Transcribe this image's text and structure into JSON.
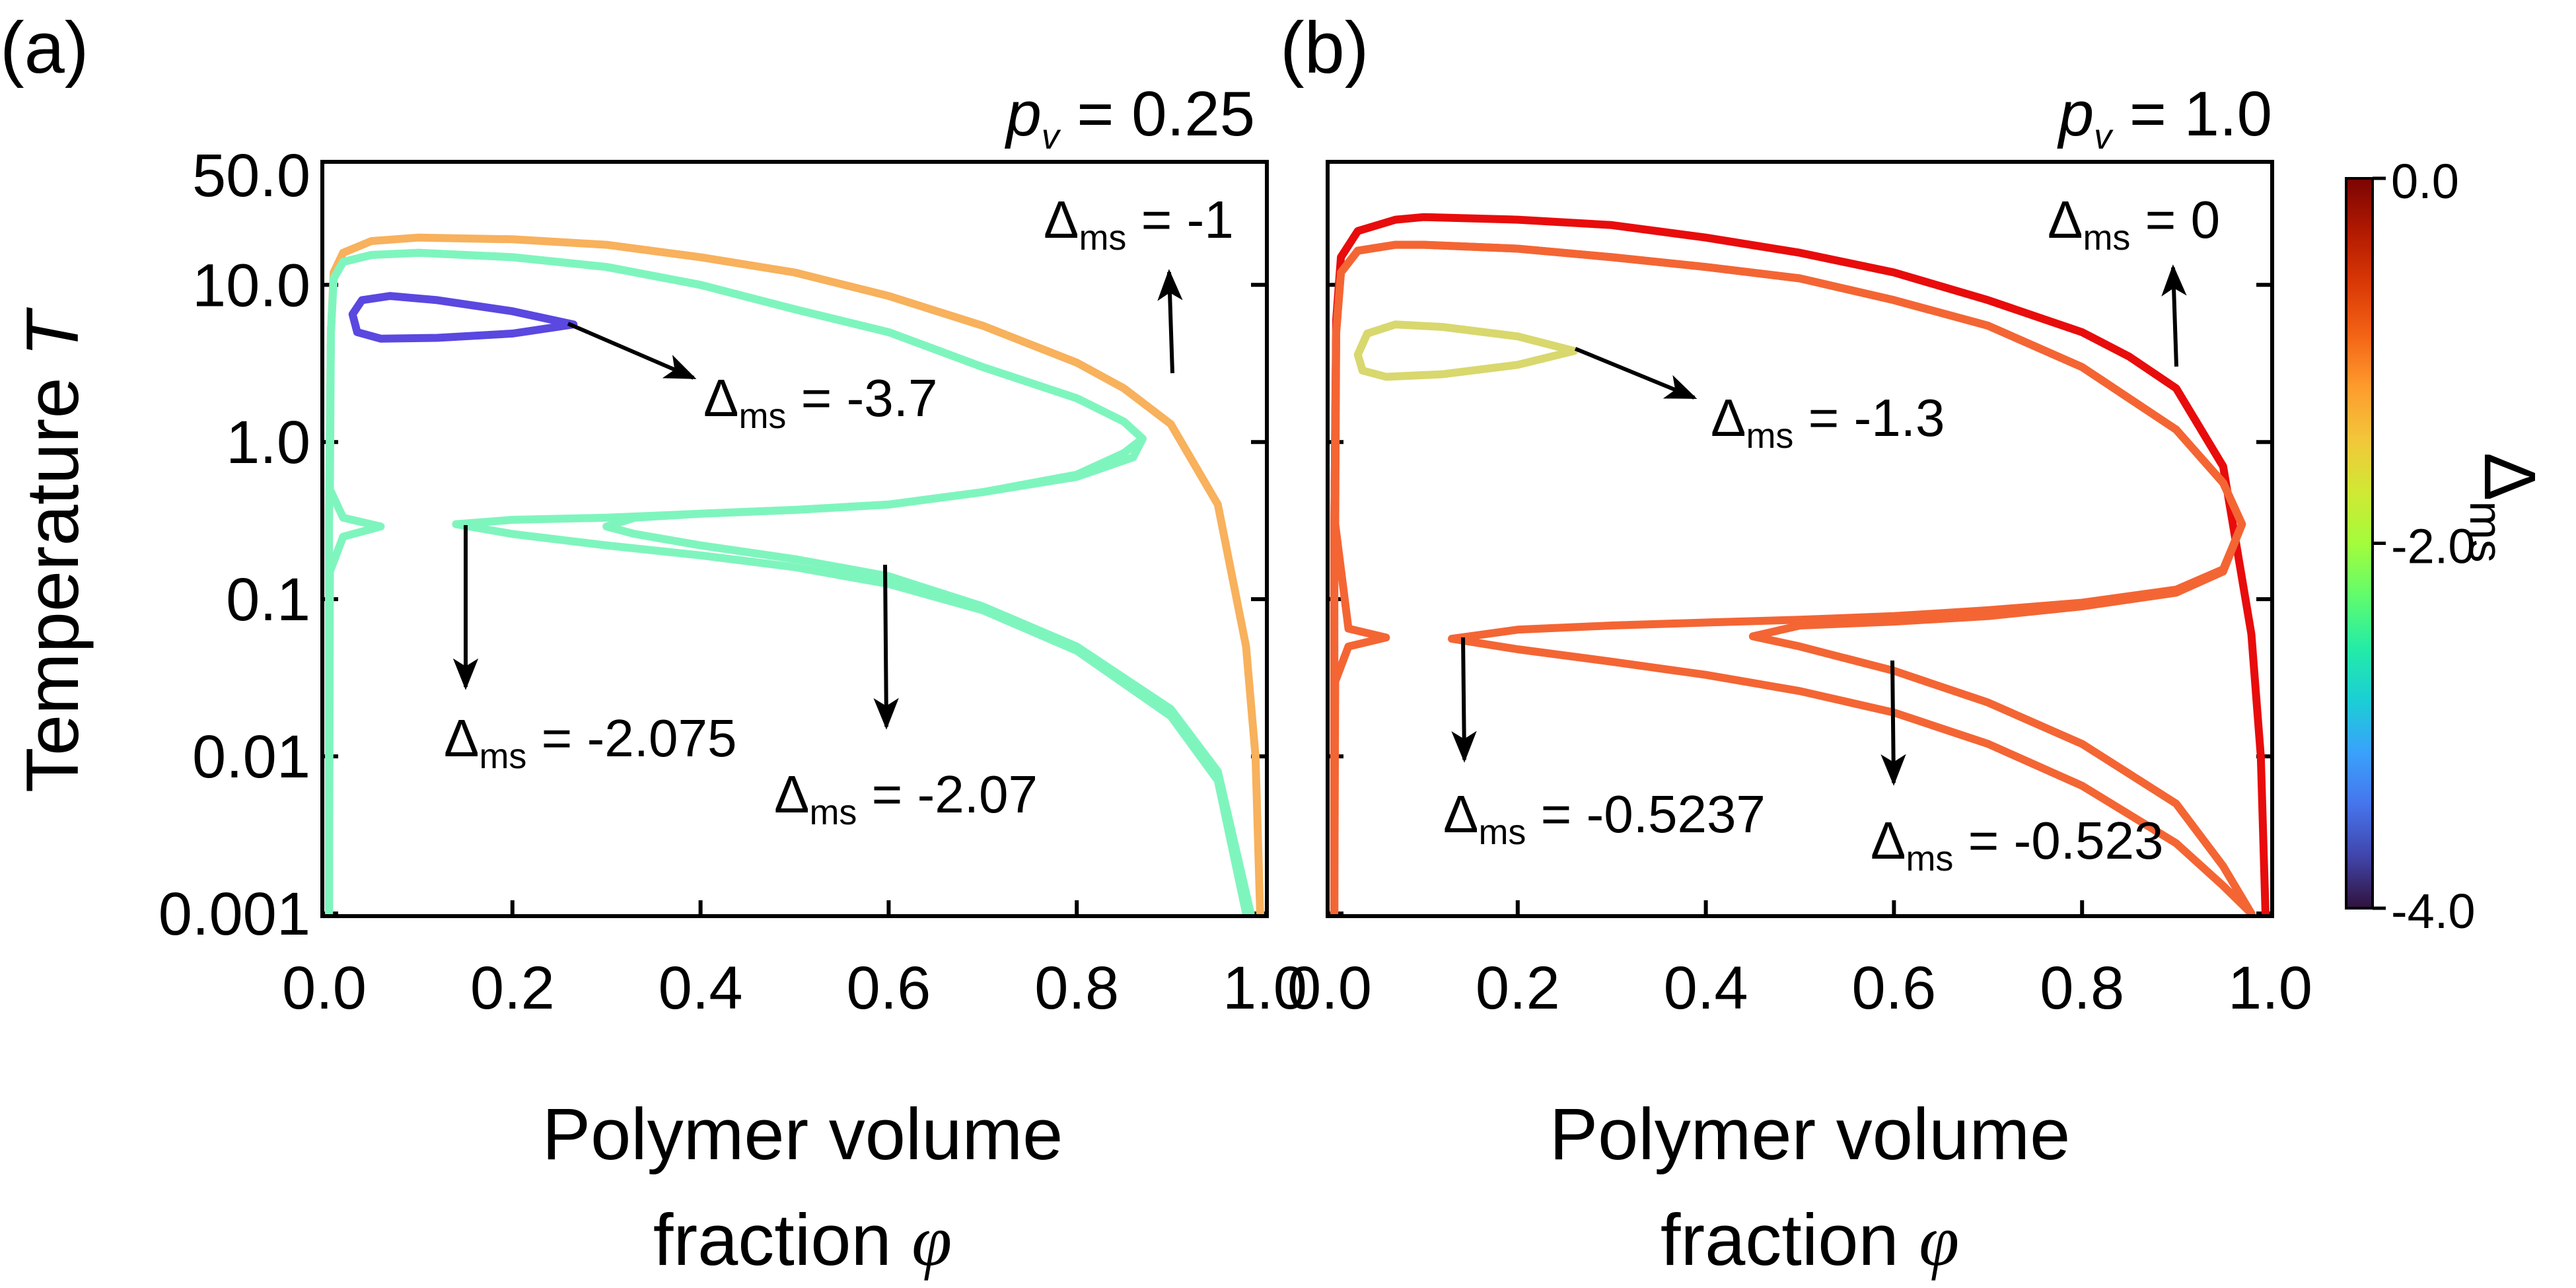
{
  "chart_data": [
    {
      "panel_label": "(a)",
      "type": "line",
      "title": "p_v = 0.25",
      "title_parts": {
        "symbol": "p",
        "subscript": "v",
        "rest": " = 0.25"
      },
      "ylabel": {
        "text": "Temperature ",
        "symbol": "T"
      },
      "xlabel": {
        "line1": "Polymer volume",
        "line2": "fraction ",
        "symbol": "φ"
      },
      "xlim": [
        0.0,
        1.0
      ],
      "ylim": [
        0.001,
        50.0
      ],
      "yscale": "log",
      "xticks": [
        0.0,
        0.2,
        0.4,
        0.6,
        0.8,
        1.0
      ],
      "xtick_labels": [
        "0.0",
        "0.2",
        "0.4",
        "0.6",
        "0.8",
        "1.0"
      ],
      "yticks": [
        0.001,
        0.01,
        0.1,
        1.0,
        10.0,
        50.0
      ],
      "ytick_labels": [
        "0.001",
        "0.01",
        "0.1",
        "1.0",
        "10.0",
        "50.0"
      ],
      "series": [
        {
          "name": "Δms = -1",
          "delta_ms": -1.0,
          "color": "#F8B15C",
          "points": [
            [
              0.005,
              0.001
            ],
            [
              0.005,
              0.3
            ],
            [
              0.007,
              5
            ],
            [
              0.01,
              12
            ],
            [
              0.02,
              16
            ],
            [
              0.05,
              19
            ],
            [
              0.1,
              20
            ],
            [
              0.2,
              19.5
            ],
            [
              0.3,
              18
            ],
            [
              0.4,
              15
            ],
            [
              0.5,
              12
            ],
            [
              0.6,
              8.5
            ],
            [
              0.7,
              5.5
            ],
            [
              0.8,
              3.2
            ],
            [
              0.85,
              2.2
            ],
            [
              0.9,
              1.3
            ],
            [
              0.95,
              0.4
            ],
            [
              0.98,
              0.05
            ],
            [
              0.99,
              0.01
            ],
            [
              0.995,
              0.001
            ]
          ]
        },
        {
          "name": "Δms = -2.07",
          "delta_ms": -2.07,
          "color": "#7FF5BE",
          "points": [
            [
              0.005,
              0.001
            ],
            [
              0.005,
              0.3
            ],
            [
              0.007,
              5
            ],
            [
              0.01,
              11
            ],
            [
              0.02,
              14
            ],
            [
              0.05,
              15.5
            ],
            [
              0.1,
              16
            ],
            [
              0.2,
              15
            ],
            [
              0.3,
              13
            ],
            [
              0.4,
              10
            ],
            [
              0.5,
              7
            ],
            [
              0.6,
              5
            ],
            [
              0.7,
              3
            ],
            [
              0.8,
              1.9
            ],
            [
              0.85,
              1.35
            ],
            [
              0.87,
              1.05
            ],
            [
              0.86,
              0.8
            ],
            [
              0.8,
              0.6
            ],
            [
              0.7,
              0.48
            ],
            [
              0.6,
              0.4
            ],
            [
              0.5,
              0.37
            ],
            [
              0.4,
              0.35
            ],
            [
              0.33,
              0.33
            ],
            [
              0.3,
              0.29
            ],
            [
              0.33,
              0.26
            ],
            [
              0.4,
              0.22
            ],
            [
              0.5,
              0.18
            ],
            [
              0.6,
              0.14
            ],
            [
              0.7,
              0.09
            ],
            [
              0.8,
              0.05
            ],
            [
              0.9,
              0.02
            ],
            [
              0.95,
              0.008
            ],
            [
              0.985,
              0.001
            ]
          ]
        },
        {
          "name": "Δms = -2.075",
          "delta_ms": -2.075,
          "color": "#7FF5BE",
          "points": [
            [
              0.14,
              0.3
            ],
            [
              0.2,
              0.32
            ],
            [
              0.3,
              0.33
            ],
            [
              0.4,
              0.35
            ],
            [
              0.5,
              0.37
            ],
            [
              0.6,
              0.4
            ],
            [
              0.7,
              0.48
            ],
            [
              0.8,
              0.62
            ],
            [
              0.85,
              0.85
            ],
            [
              0.87,
              1.05
            ],
            [
              0.85,
              1.35
            ],
            [
              0.8,
              1.9
            ],
            [
              0.7,
              3
            ],
            [
              0.6,
              5
            ],
            [
              0.5,
              7
            ],
            [
              0.4,
              10
            ],
            [
              0.3,
              13
            ],
            [
              0.2,
              15
            ],
            [
              0.1,
              16
            ],
            [
              0.05,
              15.5
            ],
            [
              0.02,
              14
            ],
            [
              0.01,
              11
            ],
            [
              0.007,
              5
            ],
            [
              0.006,
              0.5
            ],
            [
              0.02,
              0.33
            ],
            [
              0.06,
              0.29
            ],
            [
              0.02,
              0.25
            ],
            [
              0.006,
              0.15
            ],
            [
              0.005,
              0.001
            ]
          ]
        },
        {
          "name": "Δms = -2.075 (lower)",
          "delta_ms": -2.075,
          "color": "#7FF5BE",
          "points": [
            [
              0.14,
              0.3
            ],
            [
              0.2,
              0.26
            ],
            [
              0.3,
              0.22
            ],
            [
              0.4,
              0.19
            ],
            [
              0.5,
              0.16
            ],
            [
              0.6,
              0.125
            ],
            [
              0.7,
              0.085
            ],
            [
              0.8,
              0.047
            ],
            [
              0.9,
              0.018
            ],
            [
              0.95,
              0.007
            ],
            [
              0.98,
              0.001
            ]
          ]
        },
        {
          "name": "Δms = -3.7",
          "delta_ms": -3.7,
          "color": "#5A48E0",
          "points": [
            [
              0.03,
              6.5
            ],
            [
              0.04,
              8.0
            ],
            [
              0.07,
              8.5
            ],
            [
              0.12,
              8.0
            ],
            [
              0.2,
              6.8
            ],
            [
              0.265,
              5.6
            ],
            [
              0.2,
              4.9
            ],
            [
              0.12,
              4.6
            ],
            [
              0.06,
              4.55
            ],
            [
              0.035,
              5.0
            ],
            [
              0.03,
              6.5
            ]
          ]
        }
      ],
      "annotations": [
        {
          "text": "-1",
          "symbol": "Δ",
          "sub": "ms"
        },
        {
          "text": "-3.7",
          "symbol": "Δ",
          "sub": "ms"
        },
        {
          "text": "-2.075",
          "symbol": "Δ",
          "sub": "ms"
        },
        {
          "text": "-2.07",
          "symbol": "Δ",
          "sub": "ms"
        }
      ]
    },
    {
      "panel_label": "(b)",
      "type": "line",
      "title": "p_v = 1.0",
      "title_parts": {
        "symbol": "p",
        "subscript": "v",
        "rest": " = 1.0"
      },
      "xlabel": {
        "line1": "Polymer volume",
        "line2": "fraction ",
        "symbol": "φ"
      },
      "xlim": [
        0.0,
        1.0
      ],
      "ylim": [
        0.001,
        50.0
      ],
      "yscale": "log",
      "xticks": [
        0.0,
        0.2,
        0.4,
        0.6,
        0.8,
        1.0
      ],
      "xtick_labels": [
        "0.0",
        "0.2",
        "0.4",
        "0.6",
        "0.8",
        "1.0"
      ],
      "series": [
        {
          "name": "Δms = 0",
          "delta_ms": 0.0,
          "color": "#E80C0C",
          "points": [
            [
              0.005,
              0.001
            ],
            [
              0.005,
              0.3
            ],
            [
              0.007,
              6
            ],
            [
              0.012,
              15
            ],
            [
              0.03,
              22
            ],
            [
              0.07,
              26
            ],
            [
              0.1,
              27
            ],
            [
              0.2,
              26
            ],
            [
              0.3,
              24
            ],
            [
              0.4,
              20
            ],
            [
              0.5,
              16
            ],
            [
              0.6,
              12
            ],
            [
              0.7,
              8
            ],
            [
              0.8,
              5
            ],
            [
              0.85,
              3.5
            ],
            [
              0.9,
              2.2
            ],
            [
              0.95,
              0.7
            ],
            [
              0.98,
              0.06
            ],
            [
              0.99,
              0.01
            ],
            [
              0.995,
              0.001
            ]
          ]
        },
        {
          "name": "Δms = -0.523",
          "delta_ms": -0.523,
          "color": "#F46534",
          "points": [
            [
              0.005,
              0.001
            ],
            [
              0.005,
              0.3
            ],
            [
              0.007,
              5
            ],
            [
              0.012,
              12
            ],
            [
              0.03,
              16.5
            ],
            [
              0.07,
              18
            ],
            [
              0.1,
              18
            ],
            [
              0.2,
              17
            ],
            [
              0.3,
              15
            ],
            [
              0.4,
              13
            ],
            [
              0.5,
              11
            ],
            [
              0.6,
              8
            ],
            [
              0.7,
              5.5
            ],
            [
              0.8,
              3
            ],
            [
              0.9,
              1.2
            ],
            [
              0.95,
              0.55
            ],
            [
              0.97,
              0.3
            ],
            [
              0.95,
              0.15
            ],
            [
              0.9,
              0.11
            ],
            [
              0.8,
              0.09
            ],
            [
              0.7,
              0.078
            ],
            [
              0.6,
              0.072
            ],
            [
              0.5,
              0.068
            ],
            [
              0.45,
              0.058
            ],
            [
              0.5,
              0.05
            ],
            [
              0.6,
              0.035
            ],
            [
              0.7,
              0.022
            ],
            [
              0.8,
              0.012
            ],
            [
              0.9,
              0.005
            ],
            [
              0.95,
              0.002
            ],
            [
              0.98,
              0.001
            ]
          ]
        },
        {
          "name": "Δms = -0.5237",
          "delta_ms": -0.5237,
          "color": "#F46534",
          "points": [
            [
              0.13,
              0.056
            ],
            [
              0.2,
              0.064
            ],
            [
              0.3,
              0.068
            ],
            [
              0.4,
              0.071
            ],
            [
              0.5,
              0.074
            ],
            [
              0.6,
              0.078
            ],
            [
              0.7,
              0.085
            ],
            [
              0.8,
              0.095
            ],
            [
              0.9,
              0.115
            ],
            [
              0.95,
              0.155
            ],
            [
              0.97,
              0.3
            ],
            [
              0.95,
              0.55
            ],
            [
              0.9,
              1.2
            ],
            [
              0.8,
              3
            ],
            [
              0.7,
              5.5
            ],
            [
              0.6,
              8
            ],
            [
              0.5,
              11
            ],
            [
              0.4,
              13
            ],
            [
              0.3,
              15
            ],
            [
              0.2,
              17
            ],
            [
              0.1,
              18
            ],
            [
              0.07,
              18
            ],
            [
              0.03,
              16.5
            ],
            [
              0.012,
              12
            ],
            [
              0.007,
              5
            ],
            [
              0.006,
              0.3
            ],
            [
              0.02,
              0.065
            ],
            [
              0.06,
              0.057
            ],
            [
              0.02,
              0.05
            ],
            [
              0.006,
              0.03
            ],
            [
              0.005,
              0.001
            ]
          ]
        },
        {
          "name": "Δms = -0.5237 (lower)",
          "delta_ms": -0.5237,
          "color": "#F46534",
          "points": [
            [
              0.13,
              0.056
            ],
            [
              0.2,
              0.048
            ],
            [
              0.3,
              0.04
            ],
            [
              0.4,
              0.033
            ],
            [
              0.5,
              0.026
            ],
            [
              0.6,
              0.019
            ],
            [
              0.7,
              0.012
            ],
            [
              0.8,
              0.0065
            ],
            [
              0.9,
              0.0028
            ],
            [
              0.95,
              0.0015
            ],
            [
              0.98,
              0.001
            ]
          ]
        },
        {
          "name": "Δms = -1.3",
          "delta_ms": -1.3,
          "color": "#D8D86E",
          "points": [
            [
              0.03,
              3.6
            ],
            [
              0.04,
              4.9
            ],
            [
              0.07,
              5.6
            ],
            [
              0.12,
              5.4
            ],
            [
              0.2,
              4.7
            ],
            [
              0.26,
              3.8
            ],
            [
              0.2,
              3.1
            ],
            [
              0.12,
              2.7
            ],
            [
              0.06,
              2.6
            ],
            [
              0.035,
              2.85
            ],
            [
              0.03,
              3.6
            ]
          ]
        }
      ],
      "annotations": [
        {
          "text": "0",
          "symbol": "Δ",
          "sub": "ms"
        },
        {
          "text": "-1.3",
          "symbol": "Δ",
          "sub": "ms"
        },
        {
          "text": "-0.5237",
          "symbol": "Δ",
          "sub": "ms"
        },
        {
          "text": "-0.523",
          "symbol": "Δ",
          "sub": "ms"
        }
      ]
    }
  ],
  "colorbar": {
    "label_symbol": "Δ",
    "label_sub": "ms",
    "range": [
      -4.0,
      0.0
    ],
    "tick_labels": [
      "0.0",
      "-2.0",
      "-4.0"
    ],
    "colors": [
      "#30123B",
      "#4145AB",
      "#4675ED",
      "#39A2FC",
      "#1BCFD4",
      "#24ECA6",
      "#61FC6C",
      "#A4FC3B",
      "#D1E834",
      "#F3C63A",
      "#FE9B2D",
      "#F36315",
      "#D93806",
      "#B11901",
      "#7A0403"
    ]
  }
}
